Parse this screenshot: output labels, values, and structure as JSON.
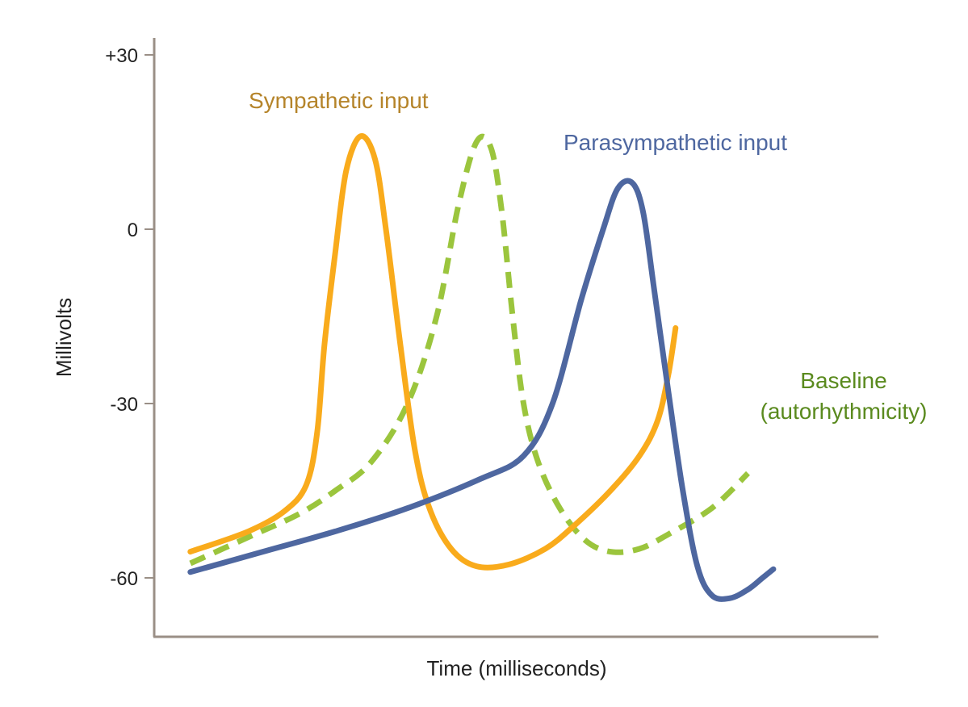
{
  "chart_data": {
    "type": "line",
    "xlabel": "Time (milliseconds)",
    "ylabel": "Millivolts",
    "ylim": [
      -70,
      33
    ],
    "y_ticks": [
      {
        "value": 30,
        "label": "+30"
      },
      {
        "value": 0,
        "label": "0"
      },
      {
        "value": -30,
        "label": "-30"
      },
      {
        "value": -60,
        "label": "-60"
      }
    ],
    "grid": false,
    "legend": "none",
    "axis_color": "#9a8f86",
    "series": [
      {
        "name": "Sympathetic input",
        "color": "#f9ab1c",
        "label_color": "#b5842a",
        "style": "solid",
        "points": [
          [
            5,
            -55.5
          ],
          [
            13,
            -52
          ],
          [
            18,
            -48.5
          ],
          [
            21,
            -44
          ],
          [
            22.5,
            -35
          ],
          [
            23.5,
            -20
          ],
          [
            25,
            -4
          ],
          [
            26.5,
            10
          ],
          [
            28.5,
            16
          ],
          [
            30.5,
            12
          ],
          [
            32,
            0
          ],
          [
            34,
            -20
          ],
          [
            36,
            -38
          ],
          [
            38,
            -48
          ],
          [
            41,
            -55
          ],
          [
            44.5,
            -58
          ],
          [
            49,
            -57.7
          ],
          [
            54,
            -55
          ],
          [
            58,
            -51
          ],
          [
            63,
            -45
          ],
          [
            67,
            -39
          ],
          [
            69.5,
            -33
          ],
          [
            71,
            -25
          ],
          [
            72,
            -17
          ]
        ]
      },
      {
        "name": "Baseline (autorhythmicity)",
        "color": "#9bc53d",
        "label_color": "#5a8a1e",
        "style": "dashed",
        "points": [
          [
            5,
            -57.5
          ],
          [
            13,
            -53
          ],
          [
            20,
            -49
          ],
          [
            25,
            -45
          ],
          [
            30,
            -40
          ],
          [
            35,
            -30
          ],
          [
            39,
            -15
          ],
          [
            42,
            4
          ],
          [
            44.5,
            15
          ],
          [
            46.5,
            14
          ],
          [
            48,
            3
          ],
          [
            49.5,
            -15
          ],
          [
            51,
            -30
          ],
          [
            53,
            -40
          ],
          [
            56,
            -48
          ],
          [
            59.5,
            -53.5
          ],
          [
            63,
            -55.5
          ],
          [
            67,
            -55
          ],
          [
            71,
            -52.5
          ],
          [
            77,
            -48
          ],
          [
            82,
            -42
          ]
        ]
      },
      {
        "name": "Parasympathetic input",
        "color": "#4e67a0",
        "label_color": "#4e67a0",
        "style": "solid",
        "points": [
          [
            5,
            -59
          ],
          [
            15,
            -55.5
          ],
          [
            25,
            -52
          ],
          [
            35,
            -48
          ],
          [
            45,
            -43
          ],
          [
            51,
            -39
          ],
          [
            55,
            -30
          ],
          [
            59,
            -12
          ],
          [
            62,
            0
          ],
          [
            64,
            7
          ],
          [
            66,
            8
          ],
          [
            67.5,
            3
          ],
          [
            69,
            -10
          ],
          [
            71,
            -28
          ],
          [
            73,
            -45
          ],
          [
            75,
            -58
          ],
          [
            77,
            -63
          ],
          [
            79.5,
            -63.5
          ],
          [
            82,
            -62
          ],
          [
            84,
            -60
          ],
          [
            85.5,
            -58.5
          ]
        ]
      }
    ],
    "annotations": [
      {
        "text": "Sympathetic input",
        "series": 0
      },
      {
        "text": "Parasympathetic input",
        "series": 2
      },
      {
        "text": "Baseline",
        "series": 1
      },
      {
        "text": "(autorhythmicity)",
        "series": 1
      }
    ]
  }
}
